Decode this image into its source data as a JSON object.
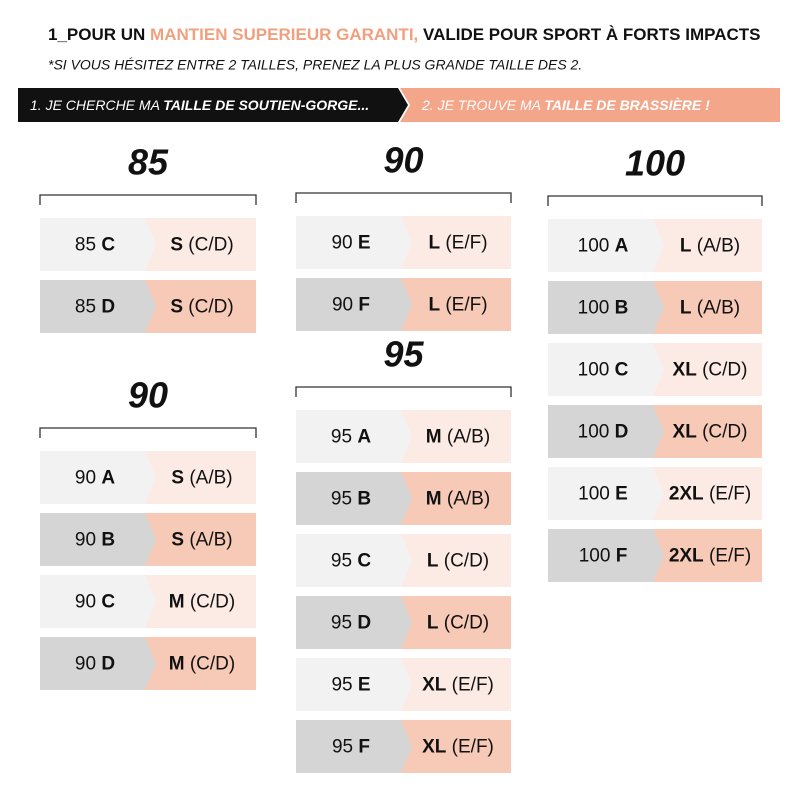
{
  "header": {
    "prefix": "1_POUR UN ",
    "highlight": "MANTIEN SUPERIEUR GARANTI,",
    "suffix": " VALIDE POUR SPORT À FORTS IMPACTS",
    "note": "*SI VOUS HÉSITEZ ENTRE 2 TAILLES, PRENEZ LA PLUS GRANDE TAILLE DES 2."
  },
  "banner": {
    "step1": {
      "text": "1. JE CHERCHE MA ",
      "bold": "TAILLE DE SOUTIEN-GORGE..."
    },
    "step2": {
      "text": "2. JE TROUVE MA ",
      "bold": "TAILLE DE BRASSIÈRE  !"
    }
  },
  "groups": [
    {
      "title": "85",
      "rows": [
        {
          "band": "85",
          "cup": "C",
          "size": "S",
          "range": "(C/D)"
        },
        {
          "band": "85",
          "cup": "D",
          "size": "S",
          "range": "(C/D)"
        }
      ]
    },
    {
      "title": "90",
      "rows": [
        {
          "band": "90",
          "cup": "A",
          "size": "S",
          "range": "(A/B)"
        },
        {
          "band": "90",
          "cup": "B",
          "size": "S",
          "range": "(A/B)"
        },
        {
          "band": "90",
          "cup": "C",
          "size": "M",
          "range": "(C/D)"
        },
        {
          "band": "90",
          "cup": "D",
          "size": "M",
          "range": "(C/D)"
        }
      ]
    },
    {
      "title": "90",
      "rows": [
        {
          "band": "90",
          "cup": "E",
          "size": "L",
          "range": "(E/F)"
        },
        {
          "band": "90",
          "cup": "F",
          "size": "L",
          "range": "(E/F)"
        }
      ]
    },
    {
      "title": "95",
      "rows": [
        {
          "band": "95",
          "cup": "A",
          "size": "M",
          "range": "(A/B)"
        },
        {
          "band": "95",
          "cup": "B",
          "size": "M",
          "range": "(A/B)"
        },
        {
          "band": "95",
          "cup": "C",
          "size": "L",
          "range": "(C/D)"
        },
        {
          "band": "95",
          "cup": "D",
          "size": "L",
          "range": "(C/D)"
        },
        {
          "band": "95",
          "cup": "E",
          "size": "XL",
          "range": "(E/F)"
        },
        {
          "band": "95",
          "cup": "F",
          "size": "XL",
          "range": "(E/F)"
        }
      ]
    },
    {
      "title": "100",
      "rows": [
        {
          "band": "100",
          "cup": "A",
          "size": "L",
          "range": "(A/B)"
        },
        {
          "band": "100",
          "cup": "B",
          "size": "L",
          "range": "(A/B)"
        },
        {
          "band": "100",
          "cup": "C",
          "size": "XL",
          "range": "(C/D)"
        },
        {
          "band": "100",
          "cup": "D",
          "size": "XL",
          "range": "(C/D)"
        },
        {
          "band": "100",
          "cup": "E",
          "size": "2XL",
          "range": "(E/F)"
        },
        {
          "band": "100",
          "cup": "F",
          "size": "2XL",
          "range": "(E/F)"
        }
      ]
    }
  ]
}
